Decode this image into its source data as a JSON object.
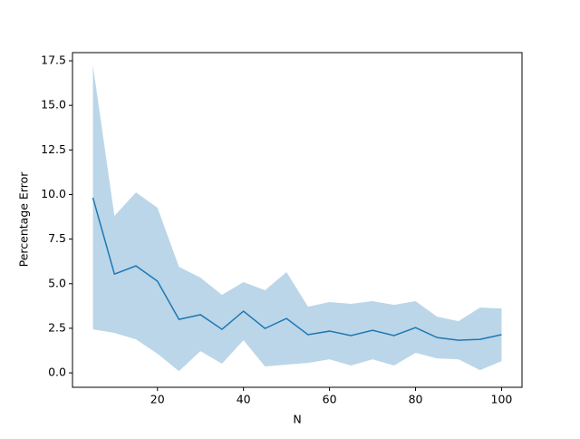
{
  "chart_data": {
    "type": "line",
    "x_label": "N",
    "y_label": "Percentage Error",
    "x": [
      5,
      10,
      15,
      20,
      25,
      30,
      35,
      40,
      45,
      50,
      55,
      60,
      65,
      70,
      75,
      80,
      85,
      90,
      95,
      100
    ],
    "series": [
      {
        "color": "#1f77b4",
        "values": [
          9.82,
          5.54,
          6.0,
          5.14,
          3.0,
          3.26,
          2.44,
          3.46,
          2.49,
          3.05,
          2.14,
          2.34,
          2.09,
          2.39,
          2.09,
          2.54,
          1.98,
          1.83,
          1.88,
          2.14
        ]
      }
    ],
    "band": {
      "color": "#1f77b4",
      "alpha": 0.3,
      "upper": [
        17.24,
        8.8,
        10.12,
        9.26,
        5.95,
        5.34,
        4.37,
        5.09,
        4.63,
        5.65,
        3.71,
        3.97,
        3.87,
        4.02,
        3.81,
        4.02,
        3.15,
        2.9,
        3.66,
        3.61
      ],
      "lower": [
        2.44,
        2.24,
        1.88,
        1.07,
        0.1,
        1.22,
        0.51,
        1.83,
        0.36,
        0.46,
        0.56,
        0.76,
        0.41,
        0.76,
        0.41,
        1.12,
        0.81,
        0.76,
        0.15,
        0.66
      ]
    },
    "xlim": [
      0.25,
      104.75
    ],
    "xticks": [
      20,
      40,
      60,
      80,
      100
    ],
    "ylim": [
      -0.81,
      17.96
    ],
    "yticks": [
      {
        "value": 0,
        "label": "0.0"
      },
      2.5,
      {
        "value": 5,
        "label": "5.0"
      },
      7.5,
      {
        "value": 10,
        "label": "10.0"
      },
      12.5,
      {
        "value": 15,
        "label": "15.0"
      },
      17.5
    ]
  }
}
